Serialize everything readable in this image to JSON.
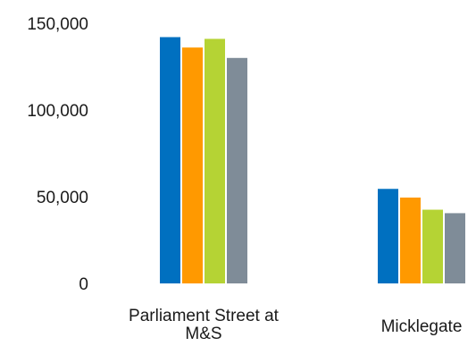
{
  "chart_data": {
    "type": "bar",
    "title": "",
    "xlabel": "",
    "ylabel": "",
    "ylim": [
      0,
      150000
    ],
    "y_ticks": [
      {
        "value": 0,
        "label": "0"
      },
      {
        "value": 50000,
        "label": "50,000"
      },
      {
        "value": 100000,
        "label": "100,000"
      },
      {
        "value": 150000,
        "label": "150,000"
      }
    ],
    "categories": [
      {
        "lines": [
          "Parliament Street at",
          "M&S"
        ]
      },
      {
        "lines": [
          "Micklegate"
        ]
      }
    ],
    "grid": false,
    "legend": "none",
    "series": [
      {
        "color": "#0070c0",
        "values": [
          142000,
          54500
        ]
      },
      {
        "color": "#ff9900",
        "values": [
          136000,
          49500
        ]
      },
      {
        "color": "#b5d334",
        "values": [
          141000,
          42500
        ]
      },
      {
        "color": "#7f8c98",
        "values": [
          130000,
          40500
        ]
      }
    ]
  }
}
